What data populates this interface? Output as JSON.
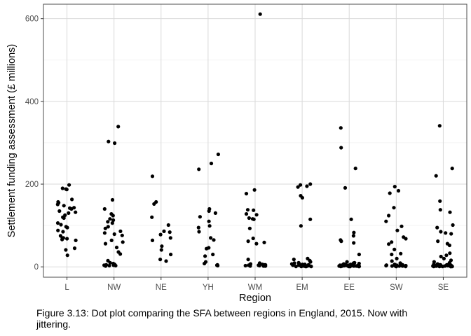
{
  "caption": "Figure 3.13: Dot plot comparing the SFA between regions in England, 2015. Now with jittering.",
  "chart_data": {
    "type": "scatter",
    "xlabel": "Region",
    "ylabel": "Settlement funding assessment (£ millions)",
    "categories": [
      "L",
      "NW",
      "NE",
      "YH",
      "WM",
      "EM",
      "EE",
      "SW",
      "SE"
    ],
    "ylim": [
      -25,
      635
    ],
    "yticks": [
      0,
      200,
      400,
      600
    ],
    "grid": true,
    "colors": {
      "point": "#000000",
      "grid_major": "#d9d9d9",
      "grid_minor": "#ececec",
      "panel_border": "#4d4d4d"
    },
    "points": [
      {
        "x": "L",
        "y": 198
      },
      {
        "x": "L",
        "y": 190
      },
      {
        "x": "L",
        "y": 188
      },
      {
        "x": "L",
        "y": 187
      },
      {
        "x": "L",
        "y": 163
      },
      {
        "x": "L",
        "y": 157
      },
      {
        "x": "L",
        "y": 155
      },
      {
        "x": "L",
        "y": 151
      },
      {
        "x": "L",
        "y": 148
      },
      {
        "x": "L",
        "y": 143
      },
      {
        "x": "L",
        "y": 142
      },
      {
        "x": "L",
        "y": 140
      },
      {
        "x": "L",
        "y": 135
      },
      {
        "x": "L",
        "y": 132
      },
      {
        "x": "L",
        "y": 130
      },
      {
        "x": "L",
        "y": 125
      },
      {
        "x": "L",
        "y": 120
      },
      {
        "x": "L",
        "y": 118
      },
      {
        "x": "L",
        "y": 106
      },
      {
        "x": "L",
        "y": 102
      },
      {
        "x": "L",
        "y": 97
      },
      {
        "x": "L",
        "y": 95
      },
      {
        "x": "L",
        "y": 88
      },
      {
        "x": "L",
        "y": 85
      },
      {
        "x": "L",
        "y": 75
      },
      {
        "x": "L",
        "y": 70
      },
      {
        "x": "L",
        "y": 70
      },
      {
        "x": "L",
        "y": 68
      },
      {
        "x": "L",
        "y": 66
      },
      {
        "x": "L",
        "y": 64
      },
      {
        "x": "L",
        "y": 45
      },
      {
        "x": "L",
        "y": 41
      },
      {
        "x": "L",
        "y": 28
      },
      {
        "x": "NW",
        "y": 339
      },
      {
        "x": "NW",
        "y": 303
      },
      {
        "x": "NW",
        "y": 299
      },
      {
        "x": "NW",
        "y": 162
      },
      {
        "x": "NW",
        "y": 140
      },
      {
        "x": "NW",
        "y": 128
      },
      {
        "x": "NW",
        "y": 124
      },
      {
        "x": "NW",
        "y": 116
      },
      {
        "x": "NW",
        "y": 113
      },
      {
        "x": "NW",
        "y": 109
      },
      {
        "x": "NW",
        "y": 106
      },
      {
        "x": "NW",
        "y": 97
      },
      {
        "x": "NW",
        "y": 93
      },
      {
        "x": "NW",
        "y": 86
      },
      {
        "x": "NW",
        "y": 82
      },
      {
        "x": "NW",
        "y": 79
      },
      {
        "x": "NW",
        "y": 76
      },
      {
        "x": "NW",
        "y": 64
      },
      {
        "x": "NW",
        "y": 60
      },
      {
        "x": "NW",
        "y": 56
      },
      {
        "x": "NW",
        "y": 47
      },
      {
        "x": "NW",
        "y": 36
      },
      {
        "x": "NW",
        "y": 31
      },
      {
        "x": "NW",
        "y": 15
      },
      {
        "x": "NW",
        "y": 10
      },
      {
        "x": "NW",
        "y": 8
      },
      {
        "x": "NW",
        "y": 6
      },
      {
        "x": "NW",
        "y": 5
      },
      {
        "x": "NW",
        "y": 4
      },
      {
        "x": "NW",
        "y": 4
      },
      {
        "x": "NW",
        "y": 3
      },
      {
        "x": "NW",
        "y": 3
      },
      {
        "x": "NW",
        "y": 2
      },
      {
        "x": "NE",
        "y": 219
      },
      {
        "x": "NE",
        "y": 157
      },
      {
        "x": "NE",
        "y": 152
      },
      {
        "x": "NE",
        "y": 120
      },
      {
        "x": "NE",
        "y": 101
      },
      {
        "x": "NE",
        "y": 86
      },
      {
        "x": "NE",
        "y": 84
      },
      {
        "x": "NE",
        "y": 78
      },
      {
        "x": "NE",
        "y": 70
      },
      {
        "x": "NE",
        "y": 64
      },
      {
        "x": "NE",
        "y": 50
      },
      {
        "x": "NE",
        "y": 41
      },
      {
        "x": "NE",
        "y": 30
      },
      {
        "x": "NE",
        "y": 18
      },
      {
        "x": "NE",
        "y": 14
      },
      {
        "x": "YH",
        "y": 272
      },
      {
        "x": "YH",
        "y": 250
      },
      {
        "x": "YH",
        "y": 236
      },
      {
        "x": "YH",
        "y": 140
      },
      {
        "x": "YH",
        "y": 135
      },
      {
        "x": "YH",
        "y": 130
      },
      {
        "x": "YH",
        "y": 121
      },
      {
        "x": "YH",
        "y": 110
      },
      {
        "x": "YH",
        "y": 99
      },
      {
        "x": "YH",
        "y": 95
      },
      {
        "x": "YH",
        "y": 85
      },
      {
        "x": "YH",
        "y": 70
      },
      {
        "x": "YH",
        "y": 65
      },
      {
        "x": "YH",
        "y": 46
      },
      {
        "x": "YH",
        "y": 44
      },
      {
        "x": "YH",
        "y": 30
      },
      {
        "x": "YH",
        "y": 26
      },
      {
        "x": "YH",
        "y": 12
      },
      {
        "x": "YH",
        "y": 8
      },
      {
        "x": "YH",
        "y": 5
      },
      {
        "x": "YH",
        "y": 4
      },
      {
        "x": "YH",
        "y": 3
      },
      {
        "x": "WM",
        "y": 611
      },
      {
        "x": "WM",
        "y": 186
      },
      {
        "x": "WM",
        "y": 177
      },
      {
        "x": "WM",
        "y": 138
      },
      {
        "x": "WM",
        "y": 137
      },
      {
        "x": "WM",
        "y": 128
      },
      {
        "x": "WM",
        "y": 126
      },
      {
        "x": "WM",
        "y": 118
      },
      {
        "x": "WM",
        "y": 116
      },
      {
        "x": "WM",
        "y": 115
      },
      {
        "x": "WM",
        "y": 93
      },
      {
        "x": "WM",
        "y": 69
      },
      {
        "x": "WM",
        "y": 62
      },
      {
        "x": "WM",
        "y": 59
      },
      {
        "x": "WM",
        "y": 56
      },
      {
        "x": "WM",
        "y": 18
      },
      {
        "x": "WM",
        "y": 9
      },
      {
        "x": "WM",
        "y": 7
      },
      {
        "x": "WM",
        "y": 6
      },
      {
        "x": "WM",
        "y": 5
      },
      {
        "x": "WM",
        "y": 5
      },
      {
        "x": "WM",
        "y": 4
      },
      {
        "x": "WM",
        "y": 4
      },
      {
        "x": "WM",
        "y": 3
      },
      {
        "x": "WM",
        "y": 3
      },
      {
        "x": "WM",
        "y": 3
      },
      {
        "x": "WM",
        "y": 2
      },
      {
        "x": "WM",
        "y": 2
      },
      {
        "x": "WM",
        "y": 2
      },
      {
        "x": "WM",
        "y": 2
      },
      {
        "x": "EM",
        "y": 200
      },
      {
        "x": "EM",
        "y": 198
      },
      {
        "x": "EM",
        "y": 195
      },
      {
        "x": "EM",
        "y": 193
      },
      {
        "x": "EM",
        "y": 172
      },
      {
        "x": "EM",
        "y": 167
      },
      {
        "x": "EM",
        "y": 115
      },
      {
        "x": "EM",
        "y": 99
      },
      {
        "x": "EM",
        "y": 20
      },
      {
        "x": "EM",
        "y": 18
      },
      {
        "x": "EM",
        "y": 15
      },
      {
        "x": "EM",
        "y": 12
      },
      {
        "x": "EM",
        "y": 10
      },
      {
        "x": "EM",
        "y": 9
      },
      {
        "x": "EM",
        "y": 8
      },
      {
        "x": "EM",
        "y": 7
      },
      {
        "x": "EM",
        "y": 6
      },
      {
        "x": "EM",
        "y": 6
      },
      {
        "x": "EM",
        "y": 5
      },
      {
        "x": "EM",
        "y": 5
      },
      {
        "x": "EM",
        "y": 4
      },
      {
        "x": "EM",
        "y": 4
      },
      {
        "x": "EM",
        "y": 4
      },
      {
        "x": "EM",
        "y": 3
      },
      {
        "x": "EM",
        "y": 3
      },
      {
        "x": "EM",
        "y": 3
      },
      {
        "x": "EM",
        "y": 2
      },
      {
        "x": "EM",
        "y": 2
      },
      {
        "x": "EM",
        "y": 2
      },
      {
        "x": "EM",
        "y": 2
      },
      {
        "x": "EM",
        "y": 2
      },
      {
        "x": "EM",
        "y": 1
      },
      {
        "x": "EM",
        "y": 1
      },
      {
        "x": "EM",
        "y": 1
      },
      {
        "x": "EM",
        "y": 1
      },
      {
        "x": "EM",
        "y": 1
      },
      {
        "x": "EE",
        "y": 336
      },
      {
        "x": "EE",
        "y": 288
      },
      {
        "x": "EE",
        "y": 238
      },
      {
        "x": "EE",
        "y": 191
      },
      {
        "x": "EE",
        "y": 115
      },
      {
        "x": "EE",
        "y": 83
      },
      {
        "x": "EE",
        "y": 75
      },
      {
        "x": "EE",
        "y": 65
      },
      {
        "x": "EE",
        "y": 62
      },
      {
        "x": "EE",
        "y": 58
      },
      {
        "x": "EE",
        "y": 30
      },
      {
        "x": "EE",
        "y": 12
      },
      {
        "x": "EE",
        "y": 10
      },
      {
        "x": "EE",
        "y": 9
      },
      {
        "x": "EE",
        "y": 8
      },
      {
        "x": "EE",
        "y": 7
      },
      {
        "x": "EE",
        "y": 7
      },
      {
        "x": "EE",
        "y": 6
      },
      {
        "x": "EE",
        "y": 6
      },
      {
        "x": "EE",
        "y": 5
      },
      {
        "x": "EE",
        "y": 5
      },
      {
        "x": "EE",
        "y": 5
      },
      {
        "x": "EE",
        "y": 4
      },
      {
        "x": "EE",
        "y": 4
      },
      {
        "x": "EE",
        "y": 4
      },
      {
        "x": "EE",
        "y": 3
      },
      {
        "x": "EE",
        "y": 3
      },
      {
        "x": "EE",
        "y": 3
      },
      {
        "x": "EE",
        "y": 3
      },
      {
        "x": "EE",
        "y": 2
      },
      {
        "x": "EE",
        "y": 2
      },
      {
        "x": "EE",
        "y": 2
      },
      {
        "x": "EE",
        "y": 2
      },
      {
        "x": "EE",
        "y": 2
      },
      {
        "x": "EE",
        "y": 1
      },
      {
        "x": "EE",
        "y": 1
      },
      {
        "x": "EE",
        "y": 1
      },
      {
        "x": "EE",
        "y": 1
      },
      {
        "x": "EE",
        "y": 1
      },
      {
        "x": "EE",
        "y": 1
      },
      {
        "x": "SW",
        "y": 194
      },
      {
        "x": "SW",
        "y": 184
      },
      {
        "x": "SW",
        "y": 178
      },
      {
        "x": "SW",
        "y": 143
      },
      {
        "x": "SW",
        "y": 124
      },
      {
        "x": "SW",
        "y": 110
      },
      {
        "x": "SW",
        "y": 98
      },
      {
        "x": "SW",
        "y": 88
      },
      {
        "x": "SW",
        "y": 72
      },
      {
        "x": "SW",
        "y": 68
      },
      {
        "x": "SW",
        "y": 60
      },
      {
        "x": "SW",
        "y": 55
      },
      {
        "x": "SW",
        "y": 42
      },
      {
        "x": "SW",
        "y": 32
      },
      {
        "x": "SW",
        "y": 30
      },
      {
        "x": "SW",
        "y": 20
      },
      {
        "x": "SW",
        "y": 14
      },
      {
        "x": "SW",
        "y": 9
      },
      {
        "x": "SW",
        "y": 7
      },
      {
        "x": "SW",
        "y": 6
      },
      {
        "x": "SW",
        "y": 5
      },
      {
        "x": "SW",
        "y": 5
      },
      {
        "x": "SW",
        "y": 4
      },
      {
        "x": "SW",
        "y": 4
      },
      {
        "x": "SW",
        "y": 4
      },
      {
        "x": "SW",
        "y": 3
      },
      {
        "x": "SW",
        "y": 3
      },
      {
        "x": "SW",
        "y": 3
      },
      {
        "x": "SW",
        "y": 2
      },
      {
        "x": "SW",
        "y": 2
      },
      {
        "x": "SW",
        "y": 2
      },
      {
        "x": "SW",
        "y": 2
      },
      {
        "x": "SW",
        "y": 1
      },
      {
        "x": "SW",
        "y": 1
      },
      {
        "x": "SW",
        "y": 1
      },
      {
        "x": "SE",
        "y": 341
      },
      {
        "x": "SE",
        "y": 238
      },
      {
        "x": "SE",
        "y": 220
      },
      {
        "x": "SE",
        "y": 159
      },
      {
        "x": "SE",
        "y": 138
      },
      {
        "x": "SE",
        "y": 132
      },
      {
        "x": "SE",
        "y": 101
      },
      {
        "x": "SE",
        "y": 95
      },
      {
        "x": "SE",
        "y": 85
      },
      {
        "x": "SE",
        "y": 82
      },
      {
        "x": "SE",
        "y": 80
      },
      {
        "x": "SE",
        "y": 62
      },
      {
        "x": "SE",
        "y": 56
      },
      {
        "x": "SE",
        "y": 52
      },
      {
        "x": "SE",
        "y": 33
      },
      {
        "x": "SE",
        "y": 28
      },
      {
        "x": "SE",
        "y": 25
      },
      {
        "x": "SE",
        "y": 20
      },
      {
        "x": "SE",
        "y": 16
      },
      {
        "x": "SE",
        "y": 12
      },
      {
        "x": "SE",
        "y": 10
      },
      {
        "x": "SE",
        "y": 8
      },
      {
        "x": "SE",
        "y": 7
      },
      {
        "x": "SE",
        "y": 6
      },
      {
        "x": "SE",
        "y": 6
      },
      {
        "x": "SE",
        "y": 5
      },
      {
        "x": "SE",
        "y": 5
      },
      {
        "x": "SE",
        "y": 5
      },
      {
        "x": "SE",
        "y": 4
      },
      {
        "x": "SE",
        "y": 4
      },
      {
        "x": "SE",
        "y": 4
      },
      {
        "x": "SE",
        "y": 4
      },
      {
        "x": "SE",
        "y": 3
      },
      {
        "x": "SE",
        "y": 3
      },
      {
        "x": "SE",
        "y": 3
      },
      {
        "x": "SE",
        "y": 3
      },
      {
        "x": "SE",
        "y": 3
      },
      {
        "x": "SE",
        "y": 2
      },
      {
        "x": "SE",
        "y": 2
      },
      {
        "x": "SE",
        "y": 2
      },
      {
        "x": "SE",
        "y": 2
      },
      {
        "x": "SE",
        "y": 2
      },
      {
        "x": "SE",
        "y": 2
      },
      {
        "x": "SE",
        "y": 1
      },
      {
        "x": "SE",
        "y": 1
      },
      {
        "x": "SE",
        "y": 1
      },
      {
        "x": "SE",
        "y": 1
      },
      {
        "x": "SE",
        "y": 1
      },
      {
        "x": "SE",
        "y": 1
      },
      {
        "x": "SE",
        "y": 1
      }
    ]
  }
}
